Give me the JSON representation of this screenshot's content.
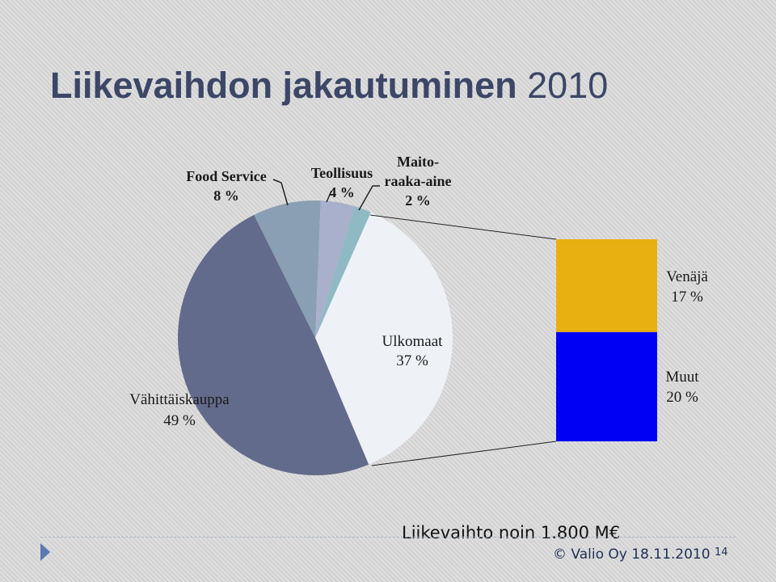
{
  "slide": {
    "title_main": "Liikevaihdon jakautuminen",
    "title_year": "2010",
    "revenue_note": "Liikevaihto noin 1.800 M€",
    "copyright": "© Valio Oy 18.11.2010",
    "page_number": "14"
  },
  "chart_data": {
    "type": "pie",
    "title": "",
    "slices": [
      {
        "label": "Food Service",
        "value_label": "8 %",
        "value": 8,
        "color": "#8a9fb3"
      },
      {
        "label": "Teollisuus",
        "value_label": "4 %",
        "value": 4,
        "color": "#a8b0cc"
      },
      {
        "label": "Maito-raaka-aine",
        "label_line1": "Maito-",
        "label_line2": "raaka-aine",
        "value_label": "2 %",
        "value": 2,
        "color": "#8fbac4"
      },
      {
        "label": "Ulkomaat",
        "value_label": "37 %",
        "value": 37,
        "color": "#eef2f7"
      },
      {
        "label": "Vähittäiskauppa",
        "value_label": "49 %",
        "value": 49,
        "color": "#636b8c"
      }
    ],
    "breakdown": {
      "of": "Ulkomaat",
      "type": "stacked-bar",
      "segments": [
        {
          "label": "Venäjä",
          "value_label": "17 %",
          "value": 17,
          "color": "#e8b010"
        },
        {
          "label": "Muut",
          "value_label": "20 %",
          "value": 20,
          "color": "#0000f5"
        }
      ]
    }
  }
}
